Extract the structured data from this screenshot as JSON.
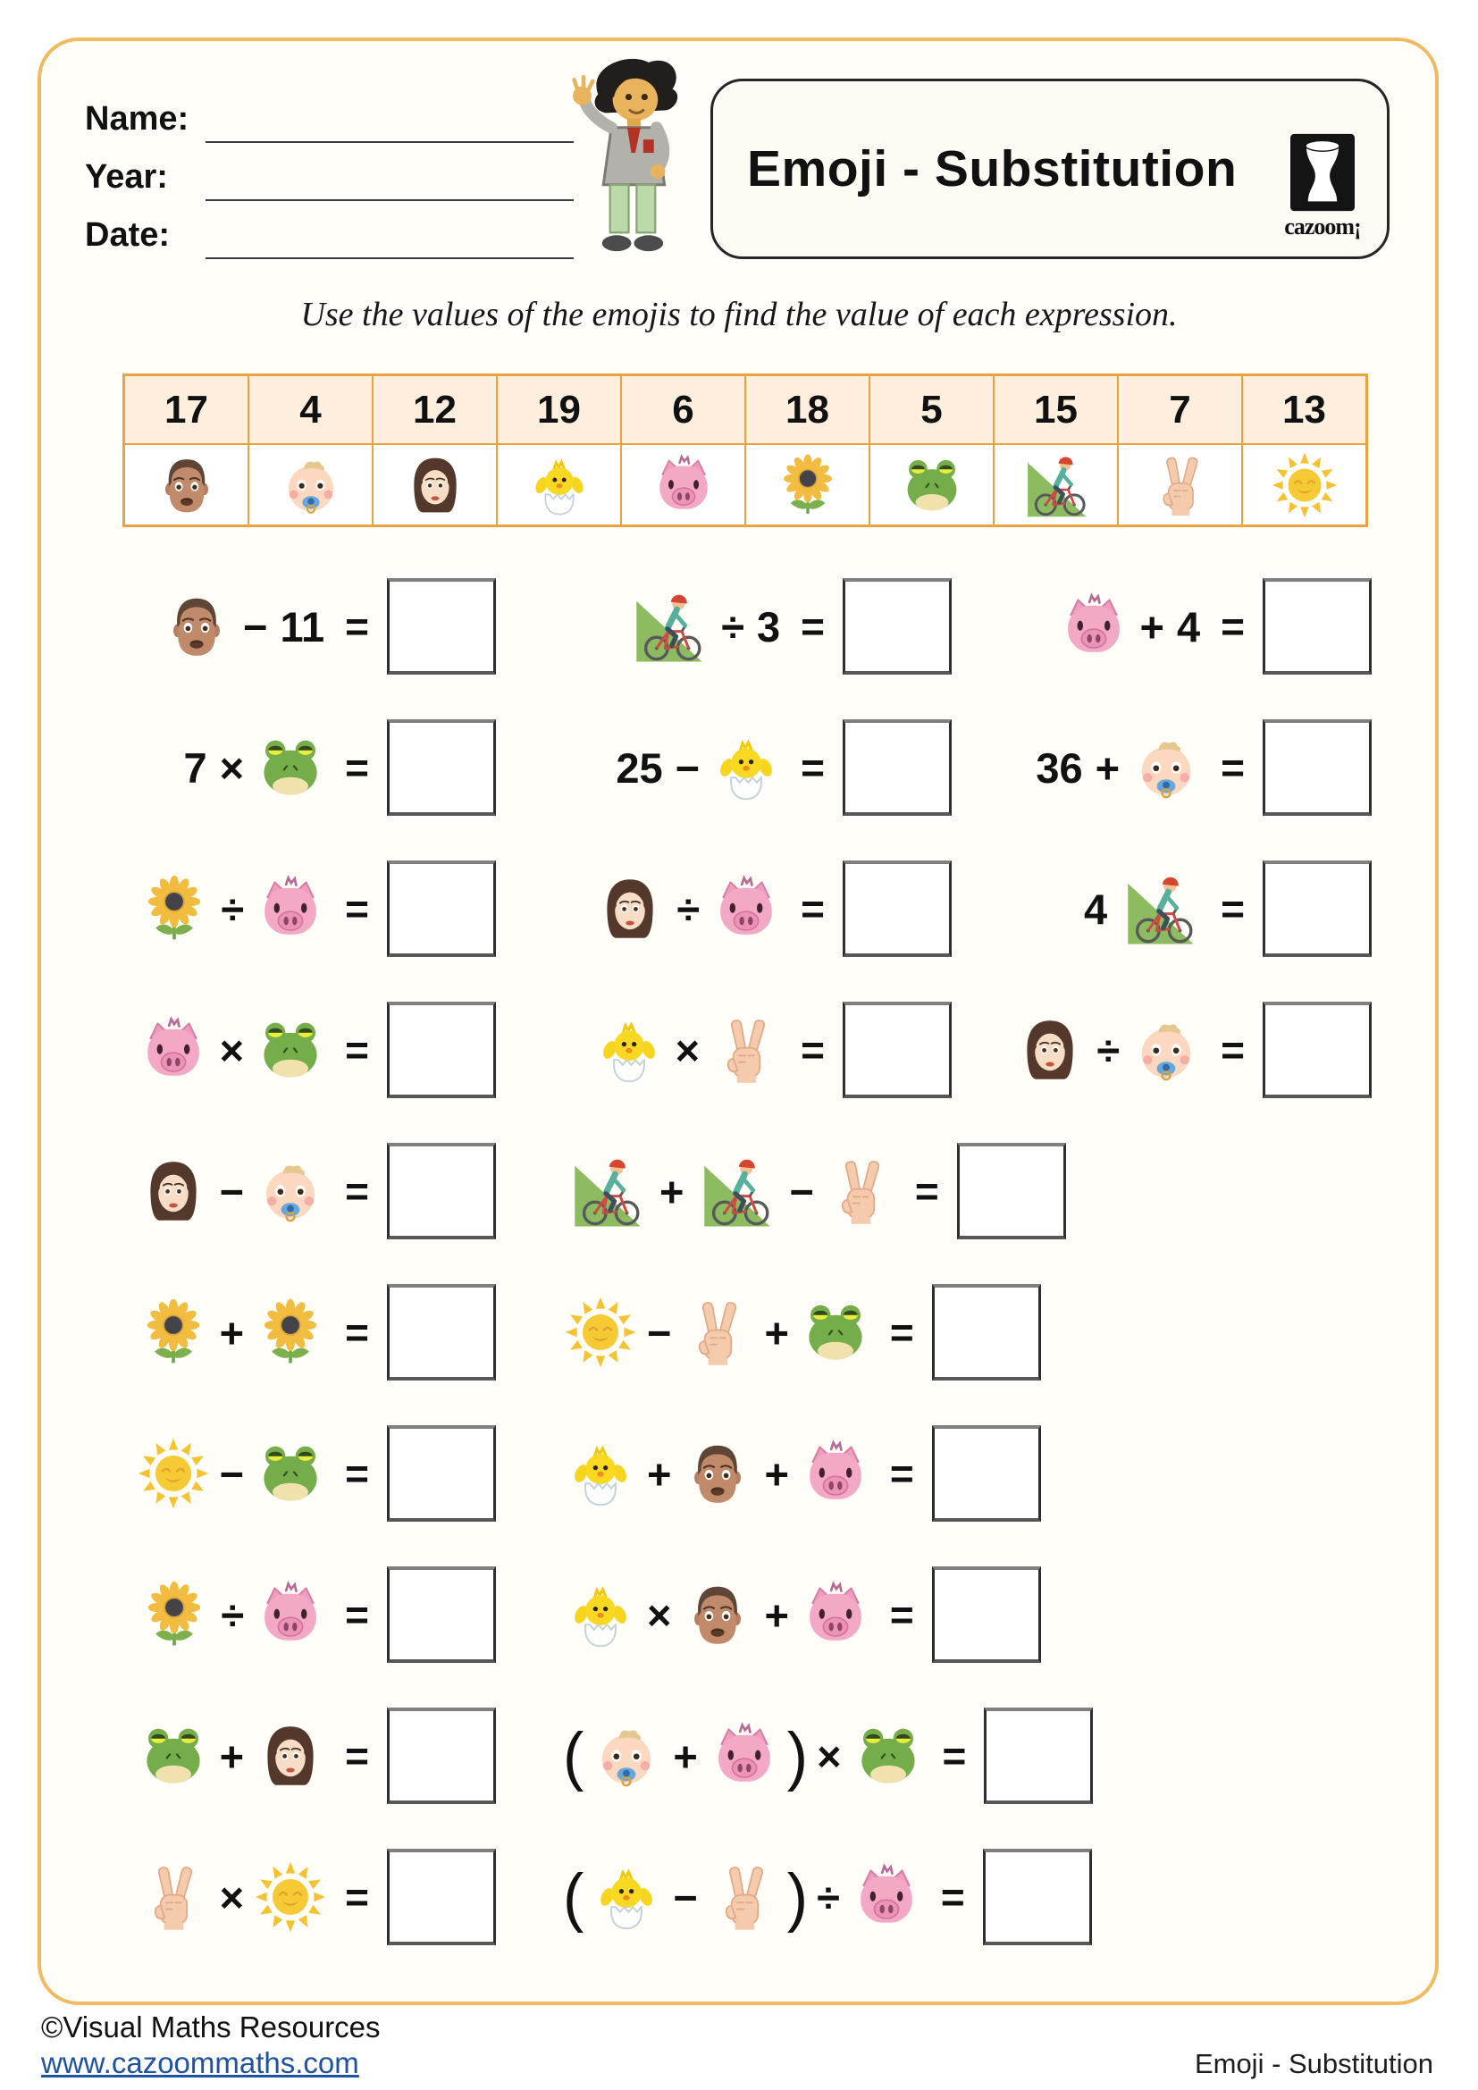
{
  "header": {
    "name_label": "Name:",
    "year_label": "Year:",
    "date_label": "Date:",
    "title": "Emoji - Substitution",
    "logo_text": "cazoom¡"
  },
  "instruction": "Use the values of the emojis to find the value of each expression.",
  "values_table": {
    "columns": [
      {
        "value": "17",
        "emoji": "man"
      },
      {
        "value": "4",
        "emoji": "baby"
      },
      {
        "value": "12",
        "emoji": "woman"
      },
      {
        "value": "19",
        "emoji": "chick"
      },
      {
        "value": "6",
        "emoji": "pig"
      },
      {
        "value": "18",
        "emoji": "sunflower"
      },
      {
        "value": "5",
        "emoji": "frog"
      },
      {
        "value": "15",
        "emoji": "biker"
      },
      {
        "value": "7",
        "emoji": "victory"
      },
      {
        "value": "13",
        "emoji": "sun"
      }
    ]
  },
  "problems": [
    {
      "items": [
        [
          {
            "t": "emoji",
            "v": "man"
          },
          {
            "t": "op",
            "v": "−"
          },
          {
            "t": "num",
            "v": "11"
          },
          {
            "t": "eq",
            "v": "="
          },
          {
            "t": "box"
          }
        ],
        [
          {
            "t": "emoji",
            "v": "biker"
          },
          {
            "t": "op",
            "v": "÷"
          },
          {
            "t": "num",
            "v": "3"
          },
          {
            "t": "eq",
            "v": "="
          },
          {
            "t": "box"
          }
        ],
        [
          {
            "t": "emoji",
            "v": "pig"
          },
          {
            "t": "op",
            "v": "+"
          },
          {
            "t": "num",
            "v": "4"
          },
          {
            "t": "eq",
            "v": "="
          },
          {
            "t": "box"
          }
        ]
      ]
    },
    {
      "items": [
        [
          {
            "t": "num",
            "v": "7"
          },
          {
            "t": "op",
            "v": "×"
          },
          {
            "t": "emoji",
            "v": "frog"
          },
          {
            "t": "eq",
            "v": "="
          },
          {
            "t": "box"
          }
        ],
        [
          {
            "t": "num",
            "v": "25"
          },
          {
            "t": "op",
            "v": "−"
          },
          {
            "t": "emoji",
            "v": "chick"
          },
          {
            "t": "eq",
            "v": "="
          },
          {
            "t": "box"
          }
        ],
        [
          {
            "t": "num",
            "v": "36"
          },
          {
            "t": "op",
            "v": "+"
          },
          {
            "t": "emoji",
            "v": "baby"
          },
          {
            "t": "eq",
            "v": "="
          },
          {
            "t": "box"
          }
        ]
      ]
    },
    {
      "items": [
        [
          {
            "t": "emoji",
            "v": "sunflower"
          },
          {
            "t": "op",
            "v": "÷"
          },
          {
            "t": "emoji",
            "v": "pig"
          },
          {
            "t": "eq",
            "v": "="
          },
          {
            "t": "box"
          }
        ],
        [
          {
            "t": "emoji",
            "v": "woman"
          },
          {
            "t": "op",
            "v": "÷"
          },
          {
            "t": "emoji",
            "v": "pig"
          },
          {
            "t": "eq",
            "v": "="
          },
          {
            "t": "box"
          }
        ],
        [
          {
            "t": "num",
            "v": "4"
          },
          {
            "t": "emoji",
            "v": "biker"
          },
          {
            "t": "eq",
            "v": "="
          },
          {
            "t": "box"
          }
        ]
      ]
    },
    {
      "items": [
        [
          {
            "t": "emoji",
            "v": "pig"
          },
          {
            "t": "op",
            "v": "×"
          },
          {
            "t": "emoji",
            "v": "frog"
          },
          {
            "t": "eq",
            "v": "="
          },
          {
            "t": "box"
          }
        ],
        [
          {
            "t": "emoji",
            "v": "chick"
          },
          {
            "t": "op",
            "v": "×"
          },
          {
            "t": "emoji",
            "v": "victory"
          },
          {
            "t": "eq",
            "v": "="
          },
          {
            "t": "box"
          }
        ],
        [
          {
            "t": "emoji",
            "v": "woman"
          },
          {
            "t": "op",
            "v": "÷"
          },
          {
            "t": "emoji",
            "v": "baby"
          },
          {
            "t": "eq",
            "v": "="
          },
          {
            "t": "box"
          }
        ]
      ]
    },
    {
      "items": [
        [
          {
            "t": "emoji",
            "v": "woman"
          },
          {
            "t": "op",
            "v": "−"
          },
          {
            "t": "emoji",
            "v": "baby"
          },
          {
            "t": "eq",
            "v": "="
          },
          {
            "t": "box"
          }
        ],
        [
          {
            "t": "emoji",
            "v": "biker"
          },
          {
            "t": "op",
            "v": "+"
          },
          {
            "t": "emoji",
            "v": "biker"
          },
          {
            "t": "op",
            "v": "−"
          },
          {
            "t": "emoji",
            "v": "victory"
          },
          {
            "t": "eq",
            "v": "="
          },
          {
            "t": "box"
          }
        ]
      ]
    },
    {
      "items": [
        [
          {
            "t": "emoji",
            "v": "sunflower"
          },
          {
            "t": "op",
            "v": "+"
          },
          {
            "t": "emoji",
            "v": "sunflower"
          },
          {
            "t": "eq",
            "v": "="
          },
          {
            "t": "box"
          }
        ],
        [
          {
            "t": "emoji",
            "v": "sun"
          },
          {
            "t": "op",
            "v": "−"
          },
          {
            "t": "emoji",
            "v": "victory"
          },
          {
            "t": "op",
            "v": "+"
          },
          {
            "t": "emoji",
            "v": "frog"
          },
          {
            "t": "eq",
            "v": "="
          },
          {
            "t": "box"
          }
        ]
      ]
    },
    {
      "items": [
        [
          {
            "t": "emoji",
            "v": "sun"
          },
          {
            "t": "op",
            "v": "−"
          },
          {
            "t": "emoji",
            "v": "frog"
          },
          {
            "t": "eq",
            "v": "="
          },
          {
            "t": "box"
          }
        ],
        [
          {
            "t": "emoji",
            "v": "chick"
          },
          {
            "t": "op",
            "v": "+"
          },
          {
            "t": "emoji",
            "v": "man"
          },
          {
            "t": "op",
            "v": "+"
          },
          {
            "t": "emoji",
            "v": "pig"
          },
          {
            "t": "eq",
            "v": "="
          },
          {
            "t": "box"
          }
        ]
      ]
    },
    {
      "items": [
        [
          {
            "t": "emoji",
            "v": "sunflower"
          },
          {
            "t": "op",
            "v": "÷"
          },
          {
            "t": "emoji",
            "v": "pig"
          },
          {
            "t": "eq",
            "v": "="
          },
          {
            "t": "box"
          }
        ],
        [
          {
            "t": "emoji",
            "v": "chick"
          },
          {
            "t": "op",
            "v": "×"
          },
          {
            "t": "emoji",
            "v": "man"
          },
          {
            "t": "op",
            "v": "+"
          },
          {
            "t": "emoji",
            "v": "pig"
          },
          {
            "t": "eq",
            "v": "="
          },
          {
            "t": "box"
          }
        ]
      ]
    },
    {
      "items": [
        [
          {
            "t": "emoji",
            "v": "frog"
          },
          {
            "t": "op",
            "v": "+"
          },
          {
            "t": "emoji",
            "v": "woman"
          },
          {
            "t": "eq",
            "v": "="
          },
          {
            "t": "box"
          }
        ],
        [
          {
            "t": "paren",
            "v": "("
          },
          {
            "t": "emoji",
            "v": "baby"
          },
          {
            "t": "op",
            "v": "+"
          },
          {
            "t": "emoji",
            "v": "pig"
          },
          {
            "t": "paren",
            "v": ")"
          },
          {
            "t": "op",
            "v": "×"
          },
          {
            "t": "emoji",
            "v": "frog"
          },
          {
            "t": "eq",
            "v": "="
          },
          {
            "t": "box"
          }
        ]
      ]
    },
    {
      "items": [
        [
          {
            "t": "emoji",
            "v": "victory"
          },
          {
            "t": "op",
            "v": "×"
          },
          {
            "t": "emoji",
            "v": "sun"
          },
          {
            "t": "eq",
            "v": "="
          },
          {
            "t": "box"
          }
        ],
        [
          {
            "t": "paren",
            "v": "("
          },
          {
            "t": "emoji",
            "v": "chick"
          },
          {
            "t": "op",
            "v": "−"
          },
          {
            "t": "emoji",
            "v": "victory"
          },
          {
            "t": "paren",
            "v": ")"
          },
          {
            "t": "op",
            "v": "÷"
          },
          {
            "t": "emoji",
            "v": "pig"
          },
          {
            "t": "eq",
            "v": "="
          },
          {
            "t": "box"
          }
        ]
      ]
    }
  ],
  "footer": {
    "copyright": "©Visual Maths Resources",
    "link": "www.cazoommaths.com",
    "page_label": "Emoji - Substitution"
  },
  "colors": {
    "sheet_border": "#f2ba60",
    "table_border": "#e8a23f",
    "table_header_bg": "#fdeedd",
    "link_blue": "#2052a3"
  }
}
